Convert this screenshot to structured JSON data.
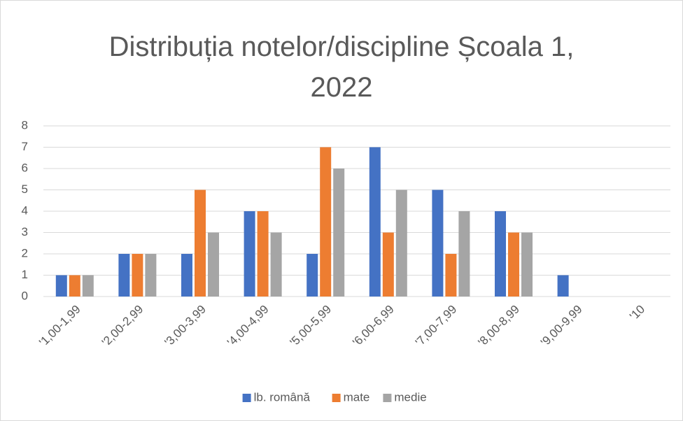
{
  "chart_data": {
    "type": "bar",
    "title": "Distribuția notelor/discipline Școala 1, 2022",
    "categories": [
      "'1,00-1,99",
      "'2,00-2,99",
      "'3,00-3,99",
      "'4,00-4,99",
      "'5,00-5,99",
      "'6,00-6,99",
      "'7,00-7,99",
      "'8,00-8,99",
      "'9,00-9,99",
      "'10"
    ],
    "series": [
      {
        "name": "lb. română",
        "color": "#4472c4",
        "values": [
          1,
          2,
          2,
          4,
          2,
          7,
          5,
          4,
          1,
          0
        ]
      },
      {
        "name": "mate",
        "color": "#ed7d31",
        "values": [
          1,
          2,
          5,
          4,
          7,
          3,
          2,
          3,
          0,
          0
        ]
      },
      {
        "name": "medie",
        "color": "#a5a5a5",
        "values": [
          1,
          2,
          3,
          3,
          6,
          5,
          4,
          3,
          0,
          0
        ]
      }
    ],
    "ylim": [
      0,
      8
    ],
    "yticks": [
      0,
      1,
      2,
      3,
      4,
      5,
      6,
      7,
      8
    ],
    "grid": true,
    "legend": "bottom"
  }
}
